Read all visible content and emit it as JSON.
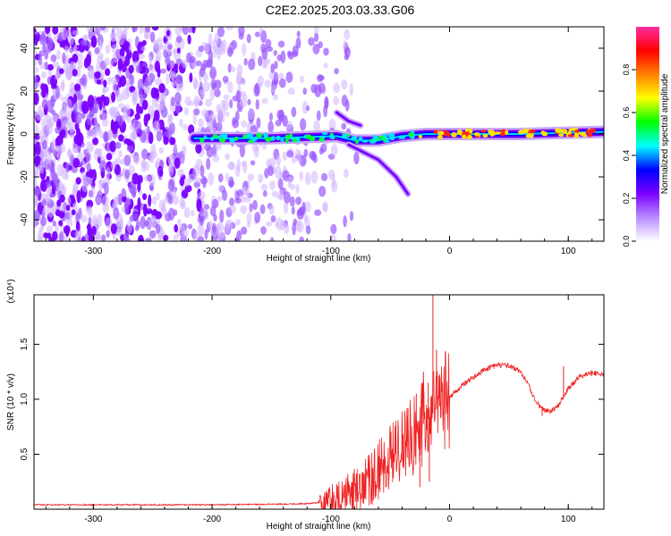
{
  "title": "C2E2.2025.203.03.33.G06",
  "chart_data": [
    {
      "type": "heatmap",
      "xlabel": "Height of straight line (km)",
      "ylabel": "Frequency (Hz)",
      "xlim": [
        -350,
        130
      ],
      "ylim": [
        -50,
        50
      ],
      "xticks": [
        -300,
        -200,
        -100,
        0,
        100
      ],
      "yticks": [
        -40,
        -20,
        0,
        20,
        40
      ],
      "colorbar": {
        "label": "Normalized spectral amplitude",
        "range": [
          0,
          1
        ],
        "ticks": [
          "0.0",
          "0.2",
          "0.4",
          "0.6",
          "0.8"
        ],
        "colors": [
          "#ffffff",
          "#b98cff",
          "#7a00ff",
          "#0000ff",
          "#00ffff",
          "#00ff00",
          "#ffff00",
          "#ff8000",
          "#ff0000",
          "#ff2da0"
        ]
      },
      "features": {
        "noise_region_x": [
          -350,
          -95
        ],
        "main_ridge": [
          {
            "x": -215,
            "y": -2
          },
          {
            "x": -150,
            "y": -2
          },
          {
            "x": -95,
            "y": -1
          },
          {
            "x": -80,
            "y": -3
          },
          {
            "x": -60,
            "y": -3
          },
          {
            "x": -40,
            "y": -1
          },
          {
            "x": -20,
            "y": 0
          },
          {
            "x": 0,
            "y": 0
          },
          {
            "x": 60,
            "y": 0
          },
          {
            "x": 130,
            "y": 1
          }
        ],
        "lower_branch": [
          {
            "x": -85,
            "y": -5
          },
          {
            "x": -60,
            "y": -12
          },
          {
            "x": -45,
            "y": -20
          },
          {
            "x": -35,
            "y": -28
          }
        ],
        "upper_branch": [
          {
            "x": -95,
            "y": 10
          },
          {
            "x": -85,
            "y": 6
          },
          {
            "x": -75,
            "y": 4
          }
        ]
      }
    },
    {
      "type": "line",
      "xlabel": "Height of straight line (km)",
      "ylabel": "SNR (10 * v/v)",
      "y_multiplier": "(x10⁴)",
      "xlim": [
        -350,
        130
      ],
      "ylim": [
        0,
        1.95
      ],
      "xticks": [
        -300,
        -200,
        -100,
        0,
        100
      ],
      "yticks": [
        "0.5",
        "1.0",
        "1.5"
      ],
      "series": [
        {
          "color": "#ee2222",
          "points": [
            {
              "x": -350,
              "y": 0.04
            },
            {
              "x": -300,
              "y": 0.04
            },
            {
              "x": -250,
              "y": 0.04
            },
            {
              "x": -200,
              "y": 0.04
            },
            {
              "x": -150,
              "y": 0.045
            },
            {
              "x": -120,
              "y": 0.05
            },
            {
              "x": -100,
              "y": 0.07
            },
            {
              "x": -90,
              "y": 0.1
            },
            {
              "x": -80,
              "y": 0.16
            },
            {
              "x": -70,
              "y": 0.25
            },
            {
              "x": -60,
              "y": 0.35
            },
            {
              "x": -50,
              "y": 0.45
            },
            {
              "x": -40,
              "y": 0.55
            },
            {
              "x": -30,
              "y": 0.68
            },
            {
              "x": -20,
              "y": 0.8
            },
            {
              "x": -10,
              "y": 0.92
            },
            {
              "x": 0,
              "y": 1.02
            },
            {
              "x": 10,
              "y": 1.12
            },
            {
              "x": 20,
              "y": 1.2
            },
            {
              "x": 30,
              "y": 1.27
            },
            {
              "x": 40,
              "y": 1.31
            },
            {
              "x": 50,
              "y": 1.31
            },
            {
              "x": 60,
              "y": 1.25
            },
            {
              "x": 65,
              "y": 1.16
            },
            {
              "x": 70,
              "y": 1.04
            },
            {
              "x": 75,
              "y": 0.95
            },
            {
              "x": 80,
              "y": 0.9
            },
            {
              "x": 85,
              "y": 0.89
            },
            {
              "x": 90,
              "y": 0.92
            },
            {
              "x": 95,
              "y": 1.0
            },
            {
              "x": 100,
              "y": 1.1
            },
            {
              "x": 110,
              "y": 1.21
            },
            {
              "x": 120,
              "y": 1.24
            },
            {
              "x": 130,
              "y": 1.22
            }
          ],
          "spikes": [
            {
              "x": -35,
              "y": 0.92
            },
            {
              "x": -28,
              "y": 1.05
            },
            {
              "x": -22,
              "y": 1.25
            },
            {
              "x": -18,
              "y": 1.15
            },
            {
              "x": -14,
              "y": 1.95
            },
            {
              "x": -11,
              "y": 1.45
            },
            {
              "x": -8,
              "y": 1.2
            },
            {
              "x": -25,
              "y": 0.2
            },
            {
              "x": -17,
              "y": 0.25
            },
            {
              "x": 78,
              "y": 0.85
            },
            {
              "x": 96,
              "y": 1.3
            }
          ]
        }
      ]
    }
  ]
}
